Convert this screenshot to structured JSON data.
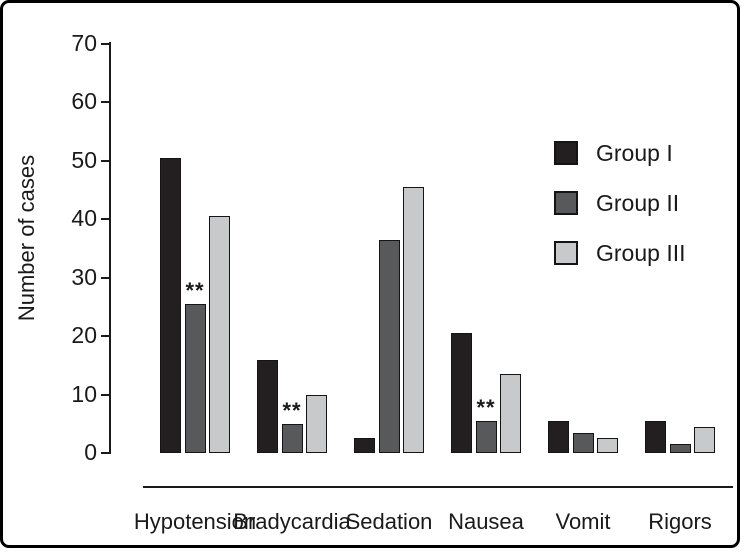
{
  "chart_data": {
    "type": "bar",
    "title": "",
    "ylabel": "Number of cases",
    "xlabel": "",
    "ylim": [
      0,
      70
    ],
    "yticks": [
      0,
      10,
      20,
      30,
      40,
      50,
      60,
      70
    ],
    "grid": false,
    "legend_position": "upper right",
    "categories": [
      "Hypotension",
      "Bradycardia",
      "Sedation",
      "Nausea",
      "Vomit",
      "Rigors"
    ],
    "series": [
      {
        "name": "Group I",
        "color": "#231f20",
        "values": [
          50.5,
          16,
          2.5,
          20.5,
          5.5,
          5.5
        ]
      },
      {
        "name": "Group II",
        "color": "#58595b",
        "values": [
          25.5,
          5,
          36.5,
          5.5,
          3.5,
          1.5
        ]
      },
      {
        "name": "Group III",
        "color": "#c8c9cb",
        "values": [
          40.5,
          10,
          45.5,
          13.5,
          2.5,
          4.5
        ]
      }
    ],
    "annotations": [
      {
        "text": "**",
        "category": "Hypotension",
        "series": "Group II"
      },
      {
        "text": "**",
        "category": "Bradycardia",
        "series": "Group II"
      },
      {
        "text": "**",
        "category": "Nausea",
        "series": "Group II"
      }
    ]
  }
}
